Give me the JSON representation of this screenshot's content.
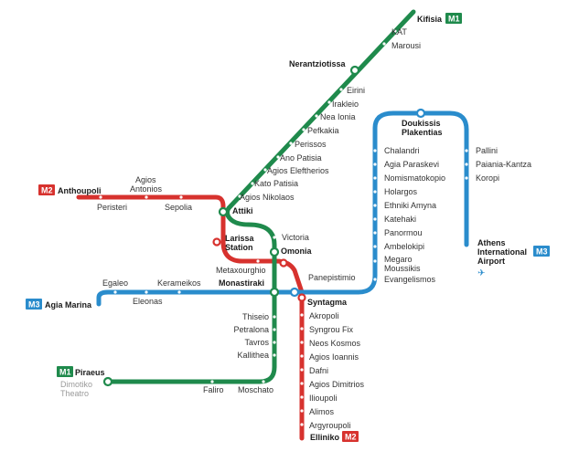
{
  "colors": {
    "m1": "#1f8a4c",
    "m2": "#d7322e",
    "m3": "#2a8ccc"
  },
  "badges": {
    "m1": "M1",
    "m2": "M2",
    "m3": "M3"
  },
  "airport_icon": "airplane-icon",
  "m1_terminus_north": "Kifisia",
  "m1_terminus_south": "Piraeus",
  "m2_terminus_west": "Anthoupoli",
  "m2_terminus_south": "Elliniko",
  "m3_terminus_west": "Agia Marina",
  "m3_airport": {
    "line1": "Athens",
    "line2": "International",
    "line3": "Airport"
  },
  "major": {
    "nerantziotissa": "Nerantziotissa",
    "attiki": "Attiki",
    "larissa1": "Larissa",
    "larissa2": "Station",
    "omonia": "Omonia",
    "monastiraki": "Monastiraki",
    "syntagma": "Syntagma",
    "doukissis1": "Doukissis",
    "doukissis2": "Plakentias"
  },
  "m1_north_stops": [
    "KAT",
    "Marousi",
    "Eirini",
    "Irakleio",
    "Nea Ionia",
    "Pefkakia",
    "Perissos",
    "Ano Patisia",
    "Agios Eleftherios",
    "Kato Patisia",
    "Agios Nikolaos"
  ],
  "victoria": "Victoria",
  "m1_south_stops": [
    "Thiseio",
    "Petralona",
    "Tavros",
    "Kallithea"
  ],
  "moschato": "Moschato",
  "faliro": "Faliro",
  "dimotiko1": "Dimotiko",
  "dimotiko2": "Theatro",
  "m2_west_stops": {
    "agios1": "Agios",
    "agios2": "Antonios",
    "peristeri": "Peristeri",
    "sepolia": "Sepolia"
  },
  "metaxourghio": "Metaxourghio",
  "panepistimio": "Panepistimio",
  "m2_south_stops": [
    "Akropoli",
    "Syngrou Fix",
    "Neos Kosmos",
    "Agios Ioannis",
    "Dafni",
    "Agios Dimitrios",
    "Ilioupoli",
    "Alimos",
    "Argyroupoli"
  ],
  "m3_west_stops": {
    "egaleo": "Egaleo",
    "eleonas": "Eleonas",
    "kerameikos": "Kerameikos"
  },
  "m3_east_stops": [
    "Chalandri",
    "Agia Paraskevi",
    "Nomismatokopio",
    "Holargos",
    "Ethniki Amyna",
    "Katehaki",
    "Panormou",
    "Ambelokipi"
  ],
  "megaro1": "Megaro",
  "megaro2": "Moussikis",
  "evangelismos": "Evangelismos",
  "airport_branch_stops": [
    "Pallini",
    "Paiania-Kantza",
    "Koropi"
  ]
}
